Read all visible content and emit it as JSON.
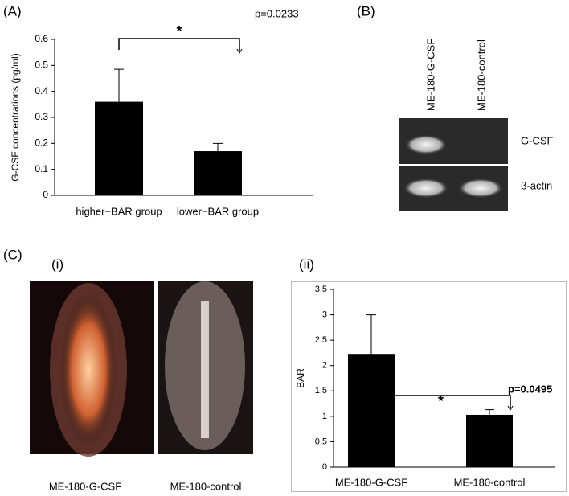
{
  "figure": {
    "panel_a": "(A)",
    "panel_b": "(B)",
    "panel_c": "(C)",
    "panel_c_i": "(i)",
    "panel_c_ii": "(ii)",
    "gel": {
      "lanes": [
        "ME-180-G-CSF",
        "ME-180-control"
      ],
      "rows": [
        "G-CSF",
        "β-actin"
      ]
    },
    "images": {
      "labels": [
        "ME-180-G-CSF",
        "ME-180-control"
      ]
    }
  },
  "chart_data": [
    {
      "type": "bar",
      "ylabel": "G-CSF concentrations (pg/ml)",
      "categories": [
        "higher−BAR group",
        "lower−BAR group"
      ],
      "values": [
        0.36,
        0.17
      ],
      "errors": [
        0.125,
        0.03
      ],
      "color": "#000000",
      "ylim": [
        0,
        0.6
      ],
      "yticks": [
        0,
        0.1,
        0.2,
        0.3,
        0.4,
        0.5,
        0.6
      ],
      "significance": "*",
      "p_value": "p=0.0233"
    },
    {
      "type": "bar",
      "ylabel": "BAR",
      "categories": [
        "ME-180-G-CSF",
        "ME-180-control"
      ],
      "values": [
        2.23,
        1.03
      ],
      "errors": [
        0.77,
        0.1
      ],
      "color": "#000000",
      "ylim": [
        0,
        3.5
      ],
      "yticks": [
        0,
        0.5,
        1,
        1.5,
        2,
        2.5,
        3,
        3.5
      ],
      "significance": "*",
      "p_value": "p=0.0495"
    }
  ]
}
